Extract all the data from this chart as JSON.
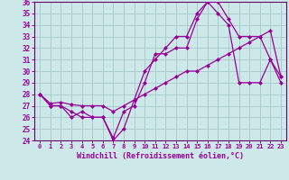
{
  "xlabel": "Windchill (Refroidissement éolien,°C)",
  "background_color": "#cce8e8",
  "grid_color": "#aacccc",
  "line_color": "#990099",
  "spine_color": "#660066",
  "xlim": [
    -0.5,
    23.5
  ],
  "ylim": [
    24,
    36
  ],
  "yticks": [
    24,
    25,
    26,
    27,
    28,
    29,
    30,
    31,
    32,
    33,
    34,
    35,
    36
  ],
  "xticks": [
    0,
    1,
    2,
    3,
    4,
    5,
    6,
    7,
    8,
    9,
    10,
    11,
    12,
    13,
    14,
    15,
    16,
    17,
    18,
    19,
    20,
    21,
    22,
    23
  ],
  "series": [
    {
      "x": [
        0,
        1,
        2,
        3,
        4,
        5,
        6,
        7,
        8,
        9,
        10,
        11,
        12,
        13,
        14,
        15,
        16,
        17,
        18,
        19,
        20,
        21,
        22,
        23
      ],
      "y": [
        28,
        27,
        27,
        26,
        26.5,
        26,
        26,
        24,
        25,
        27.5,
        30,
        31,
        32,
        33,
        33,
        35,
        36,
        35,
        34,
        29,
        29,
        29,
        31,
        29.5
      ]
    },
    {
      "x": [
        0,
        1,
        2,
        3,
        4,
        5,
        6,
        7,
        8,
        9,
        10,
        11,
        12,
        13,
        14,
        15,
        16,
        17,
        18,
        19,
        20,
        21,
        22,
        23
      ],
      "y": [
        28,
        27,
        27,
        26.5,
        26,
        26,
        26,
        24.2,
        26.5,
        27,
        29,
        31.5,
        31.5,
        32,
        32,
        34.5,
        36,
        36,
        34.5,
        33,
        33,
        33,
        31,
        29
      ]
    },
    {
      "x": [
        0,
        1,
        2,
        3,
        4,
        5,
        6,
        7,
        8,
        9,
        10,
        11,
        12,
        13,
        14,
        15,
        16,
        17,
        18,
        19,
        20,
        21,
        22,
        23
      ],
      "y": [
        28,
        27.2,
        27.3,
        27.1,
        27,
        27,
        27,
        26.5,
        27,
        27.5,
        28,
        28.5,
        29,
        29.5,
        30,
        30,
        30.5,
        31,
        31.5,
        32,
        32.5,
        33,
        33.5,
        29.5
      ]
    }
  ]
}
